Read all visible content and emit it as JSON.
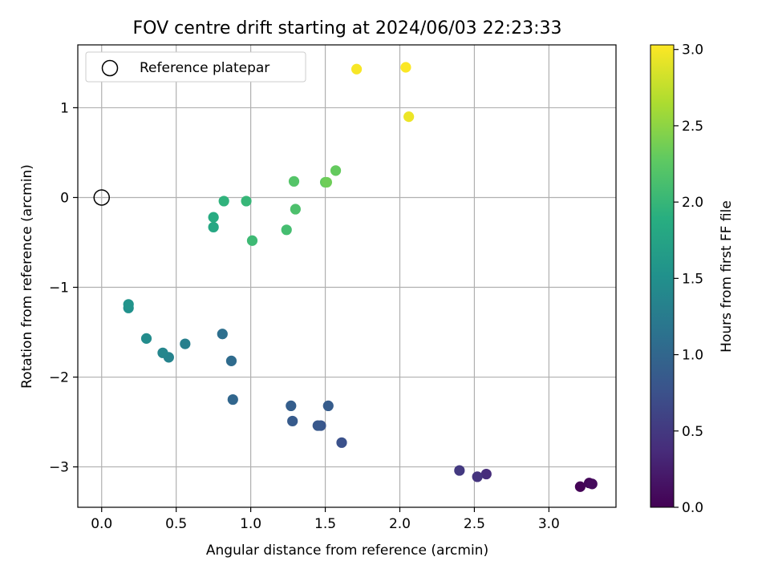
{
  "chart_data": {
    "type": "scatter",
    "title": "FOV centre drift starting at 2024/06/03 22:23:33",
    "xlabel": "Angular distance from reference (arcmin)",
    "ylabel": "Rotation from reference (arcmin)",
    "xlim": [
      -0.16,
      3.45
    ],
    "ylim": [
      -3.45,
      1.7
    ],
    "xticks": [
      0.0,
      0.5,
      1.0,
      1.5,
      2.0,
      2.5,
      3.0
    ],
    "xtick_labels": [
      "0.0",
      "0.5",
      "1.0",
      "1.5",
      "2.0",
      "2.5",
      "3.0"
    ],
    "yticks": [
      -3,
      -2,
      -1,
      0,
      1
    ],
    "ytick_labels": [
      "−3",
      "−2",
      "−1",
      "0",
      "1"
    ],
    "grid": true,
    "legend": {
      "placement": "upper-left",
      "entries": [
        "Reference platepar"
      ]
    },
    "reference": {
      "name": "Reference platepar",
      "x": 0,
      "y": 0
    },
    "colorbar": {
      "label": "Hours from first FF file",
      "range": [
        0.0,
        3.03
      ],
      "ticks": [
        0.0,
        0.5,
        1.0,
        1.5,
        2.0,
        2.5,
        3.0
      ],
      "tick_labels": [
        "0.0",
        "0.5",
        "1.0",
        "1.5",
        "2.0",
        "2.5",
        "3.0"
      ],
      "colormap": "viridis"
    },
    "points": [
      {
        "x": 3.21,
        "y": -3.22,
        "t": 0.02
      },
      {
        "x": 3.27,
        "y": -3.18,
        "t": 0.05
      },
      {
        "x": 3.29,
        "y": -3.19,
        "t": 0.08
      },
      {
        "x": 2.58,
        "y": -3.08,
        "t": 0.38
      },
      {
        "x": 2.52,
        "y": -3.11,
        "t": 0.45
      },
      {
        "x": 2.4,
        "y": -3.04,
        "t": 0.5
      },
      {
        "x": 1.61,
        "y": -2.73,
        "t": 0.75
      },
      {
        "x": 1.47,
        "y": -2.54,
        "t": 0.8
      },
      {
        "x": 1.45,
        "y": -2.54,
        "t": 0.83
      },
      {
        "x": 1.28,
        "y": -2.49,
        "t": 0.86
      },
      {
        "x": 1.52,
        "y": -2.32,
        "t": 0.88
      },
      {
        "x": 1.27,
        "y": -2.32,
        "t": 0.9
      },
      {
        "x": 0.88,
        "y": -2.25,
        "t": 1.0
      },
      {
        "x": 0.87,
        "y": -1.82,
        "t": 1.05
      },
      {
        "x": 0.81,
        "y": -1.52,
        "t": 1.1
      },
      {
        "x": 0.56,
        "y": -1.63,
        "t": 1.3
      },
      {
        "x": 0.45,
        "y": -1.78,
        "t": 1.35
      },
      {
        "x": 0.41,
        "y": -1.73,
        "t": 1.38
      },
      {
        "x": 0.3,
        "y": -1.57,
        "t": 1.45
      },
      {
        "x": 0.18,
        "y": -1.23,
        "t": 1.52
      },
      {
        "x": 0.18,
        "y": -1.19,
        "t": 1.55
      },
      {
        "x": 0.75,
        "y": -0.33,
        "t": 1.8
      },
      {
        "x": 0.75,
        "y": -0.22,
        "t": 1.85
      },
      {
        "x": 0.82,
        "y": -0.04,
        "t": 1.95
      },
      {
        "x": 0.97,
        "y": -0.04,
        "t": 2.0
      },
      {
        "x": 1.01,
        "y": -0.48,
        "t": 2.05
      },
      {
        "x": 1.24,
        "y": -0.36,
        "t": 2.1
      },
      {
        "x": 1.3,
        "y": -0.13,
        "t": 2.15
      },
      {
        "x": 1.29,
        "y": 0.18,
        "t": 2.2
      },
      {
        "x": 1.5,
        "y": 0.17,
        "t": 2.28
      },
      {
        "x": 1.51,
        "y": 0.17,
        "t": 2.35
      },
      {
        "x": 1.57,
        "y": 0.3,
        "t": 2.3
      },
      {
        "x": 2.06,
        "y": 0.9,
        "t": 2.95
      },
      {
        "x": 1.71,
        "y": 1.43,
        "t": 3.0
      },
      {
        "x": 2.04,
        "y": 1.45,
        "t": 3.02
      }
    ]
  }
}
